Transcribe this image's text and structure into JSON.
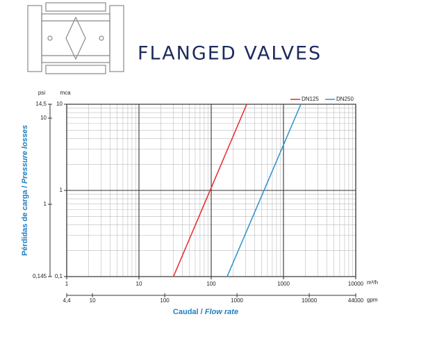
{
  "title": "FLANGED VALVES",
  "chart_data": {
    "type": "line",
    "log_x": true,
    "log_y": true,
    "grid": true,
    "legend": "top-right",
    "xlabel": [
      "Caudal /",
      "Flow rate"
    ],
    "ylabel": [
      "Pérdidas de carga /",
      "Pressure losses"
    ],
    "x_unit": "m³/h",
    "x2_unit": "gpm",
    "y_unit": "mca",
    "y2_unit": "psi",
    "xlim": [
      1,
      10000
    ],
    "xticks": [
      1,
      10,
      100,
      1000,
      10000
    ],
    "x2lim": [
      4.4,
      44000
    ],
    "x2ticks": [
      {
        "value": 4.4,
        "label": "4,4"
      },
      10,
      100,
      1000,
      10000,
      44000
    ],
    "ylim": [
      0.1,
      10
    ],
    "yticks": [
      {
        "value": 0.1,
        "label": "0,1"
      },
      1,
      10
    ],
    "y2lim": [
      0.145,
      14.5
    ],
    "y2ticks": [
      {
        "value": 0.145,
        "label": "0,145"
      },
      1,
      10,
      {
        "value": 14.5,
        "label": "14,5"
      }
    ],
    "series": [
      {
        "name": "DN125",
        "color": "#e8262b",
        "x": [
          30,
          310
        ],
        "values": [
          0.1,
          10
        ]
      },
      {
        "name": "DN250",
        "color": "#2a8fcf",
        "x": [
          166,
          1740
        ],
        "values": [
          0.1,
          10
        ]
      }
    ]
  }
}
